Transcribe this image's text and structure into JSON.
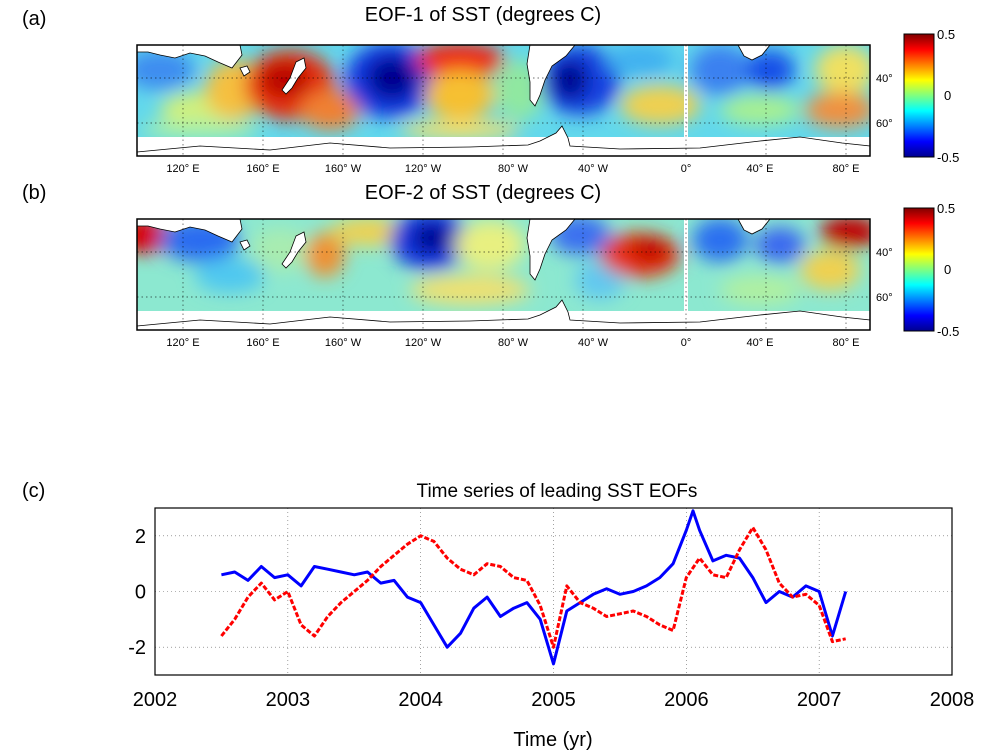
{
  "panels": {
    "a": {
      "label": "(a)",
      "title": "EOF-1 of SST (degrees C)"
    },
    "b": {
      "label": "(b)",
      "title": "EOF-2 of SST (degrees C)"
    },
    "c": {
      "label": "(c)",
      "title": "Time series of leading SST EOFs"
    }
  },
  "map_axes": {
    "lon_ticks": [
      "120° E",
      "160° E",
      "160° W",
      "120° W",
      "80° W",
      "40° W",
      "0°",
      "40° E",
      "80° E"
    ],
    "lat_ticks": [
      "40°",
      "60°"
    ]
  },
  "colorbar": {
    "ticks": [
      "0.5",
      "0",
      "-0.5"
    ],
    "range": [
      -0.5,
      0.5
    ],
    "colormap": "jet"
  },
  "colors": {
    "eof1": "#0000ff",
    "eof2": "#ff0000",
    "land": "#ffffff",
    "mask": "#ffffff"
  },
  "chart_data": [
    {
      "type": "heatmap",
      "title": "EOF-1 of SST (degrees C)",
      "x_ticks": [
        "120° E",
        "160° E",
        "160° W",
        "120° W",
        "80° W",
        "40° W",
        "0°",
        "40° E",
        "80° E"
      ],
      "y_ticks": [
        "40°",
        "60°"
      ],
      "color_range": [
        -0.5,
        0.5
      ],
      "features": [
        {
          "region": "Tasman Sea / New Zealand",
          "value": 0.45
        },
        {
          "region": "Central South Pacific near 150°W",
          "value": -0.5
        },
        {
          "region": "South Pacific near 120°W",
          "value": 0.3
        },
        {
          "region": "Southwest Atlantic near 50°W",
          "value": -0.5
        },
        {
          "region": "South Indian Ocean near 40°E–60°E",
          "value": -0.3
        }
      ]
    },
    {
      "type": "heatmap",
      "title": "EOF-2 of SST (degrees C)",
      "x_ticks": [
        "120° E",
        "160° E",
        "160° W",
        "120° W",
        "80° W",
        "40° W",
        "0°",
        "40° E",
        "80° E"
      ],
      "y_ticks": [
        "40°",
        "60°"
      ],
      "color_range": [
        -0.5,
        0.5
      ],
      "features": [
        {
          "region": "Southeast Indian Ocean near 105°E",
          "value": 0.45
        },
        {
          "region": "South of Australia near 140°E",
          "value": -0.35
        },
        {
          "region": "South Pacific near 120°W",
          "value": -0.45
        },
        {
          "region": "South Atlantic near 20°W",
          "value": 0.35
        },
        {
          "region": "Southwest Atlantic near 45°W",
          "value": -0.3
        },
        {
          "region": "South Indian Ocean near 90°E",
          "value": 0.45
        }
      ]
    },
    {
      "type": "line",
      "title": "Time series of leading SST EOFs",
      "xlabel": "Time (yr)",
      "ylabel": "",
      "xlim": [
        2002,
        2008
      ],
      "ylim": [
        -3,
        3
      ],
      "x_ticks": [
        2002,
        2003,
        2004,
        2005,
        2006,
        2007,
        2008
      ],
      "y_ticks": [
        2,
        0,
        -2
      ],
      "grid": true,
      "series": [
        {
          "color": "#0000ff",
          "x": [
            2002.5,
            2002.6,
            2002.7,
            2002.8,
            2002.9,
            2003.0,
            2003.1,
            2003.2,
            2003.3,
            2003.4,
            2003.5,
            2003.6,
            2003.7,
            2003.8,
            2003.9,
            2004.0,
            2004.1,
            2004.2,
            2004.3,
            2004.4,
            2004.5,
            2004.6,
            2004.7,
            2004.8,
            2004.9,
            2005.0,
            2005.1,
            2005.2,
            2005.3,
            2005.4,
            2005.5,
            2005.6,
            2005.7,
            2005.8,
            2005.9,
            2006.0,
            2006.05,
            2006.1,
            2006.2,
            2006.3,
            2006.4,
            2006.5,
            2006.6,
            2006.7,
            2006.8,
            2006.9,
            2007.0,
            2007.1,
            2007.2
          ],
          "values": [
            0.6,
            0.7,
            0.4,
            0.9,
            0.5,
            0.6,
            0.2,
            0.9,
            0.8,
            0.7,
            0.6,
            0.7,
            0.3,
            0.4,
            -0.2,
            -0.4,
            -1.2,
            -2.0,
            -1.5,
            -0.6,
            -0.2,
            -0.9,
            -0.6,
            -0.4,
            -1.0,
            -2.6,
            -0.7,
            -0.4,
            -0.1,
            0.1,
            -0.1,
            0.0,
            0.2,
            0.5,
            1.0,
            2.2,
            2.9,
            2.2,
            1.1,
            1.3,
            1.2,
            0.5,
            -0.4,
            0.0,
            -0.2,
            0.2,
            0.0,
            -1.6,
            0.0
          ]
        },
        {
          "color": "#ff0000",
          "x": [
            2002.5,
            2002.6,
            2002.7,
            2002.8,
            2002.9,
            2003.0,
            2003.1,
            2003.2,
            2003.3,
            2003.4,
            2003.5,
            2003.6,
            2003.7,
            2003.8,
            2003.9,
            2004.0,
            2004.1,
            2004.2,
            2004.3,
            2004.4,
            2004.5,
            2004.6,
            2004.7,
            2004.8,
            2004.9,
            2005.0,
            2005.1,
            2005.2,
            2005.3,
            2005.4,
            2005.5,
            2005.6,
            2005.7,
            2005.8,
            2005.9,
            2006.0,
            2006.1,
            2006.2,
            2006.3,
            2006.4,
            2006.5,
            2006.6,
            2006.7,
            2006.8,
            2006.9,
            2007.0,
            2007.1,
            2007.2
          ],
          "values": [
            -1.6,
            -1.0,
            -0.2,
            0.3,
            -0.3,
            0.0,
            -1.2,
            -1.6,
            -0.9,
            -0.4,
            0.0,
            0.4,
            0.9,
            1.3,
            1.7,
            2.0,
            1.8,
            1.2,
            0.8,
            0.6,
            1.0,
            0.9,
            0.5,
            0.4,
            -0.5,
            -2.0,
            0.2,
            -0.4,
            -0.6,
            -0.9,
            -0.8,
            -0.7,
            -0.9,
            -1.2,
            -1.4,
            0.5,
            1.2,
            0.6,
            0.5,
            1.5,
            2.3,
            1.5,
            0.3,
            -0.2,
            -0.1,
            -0.5,
            -1.8,
            -1.7
          ]
        }
      ]
    }
  ]
}
